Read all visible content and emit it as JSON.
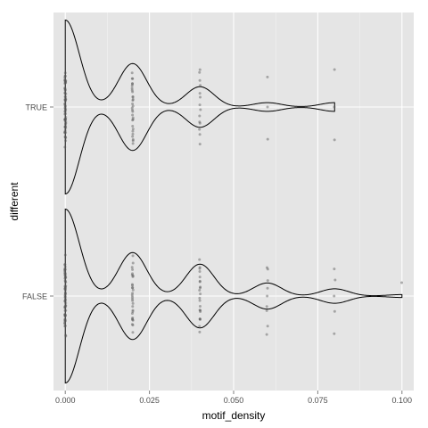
{
  "chart_data": {
    "type": "violin",
    "orientation": "horizontal",
    "xlabel": "motif_density",
    "ylabel": "different",
    "xlim": [
      -0.0035,
      0.1035
    ],
    "x_ticks": [
      0.0,
      0.025,
      0.05,
      0.075,
      0.1
    ],
    "x_tick_labels": [
      "0.000",
      "0.025",
      "0.050",
      "0.075",
      "0.100"
    ],
    "categories": [
      "TRUE",
      "FALSE"
    ],
    "grid": true,
    "panel_background": "#e5e5e5",
    "grid_color": "#ffffff",
    "violin_line_color": "#000000",
    "point_color": "#555555",
    "series": [
      {
        "category": "TRUE",
        "violin_max": 0.08,
        "points": [
          {
            "x": 0.0,
            "count": 60
          },
          {
            "x": 0.02,
            "count": 30
          },
          {
            "x": 0.04,
            "count": 14
          },
          {
            "x": 0.06,
            "count": 3
          },
          {
            "x": 0.08,
            "count": 3
          }
        ]
      },
      {
        "category": "FALSE",
        "violin_max": 0.1,
        "points": [
          {
            "x": 0.0,
            "count": 60
          },
          {
            "x": 0.02,
            "count": 30
          },
          {
            "x": 0.04,
            "count": 22
          },
          {
            "x": 0.06,
            "count": 9
          },
          {
            "x": 0.08,
            "count": 5
          },
          {
            "x": 0.1,
            "count": 1
          }
        ]
      }
    ]
  }
}
